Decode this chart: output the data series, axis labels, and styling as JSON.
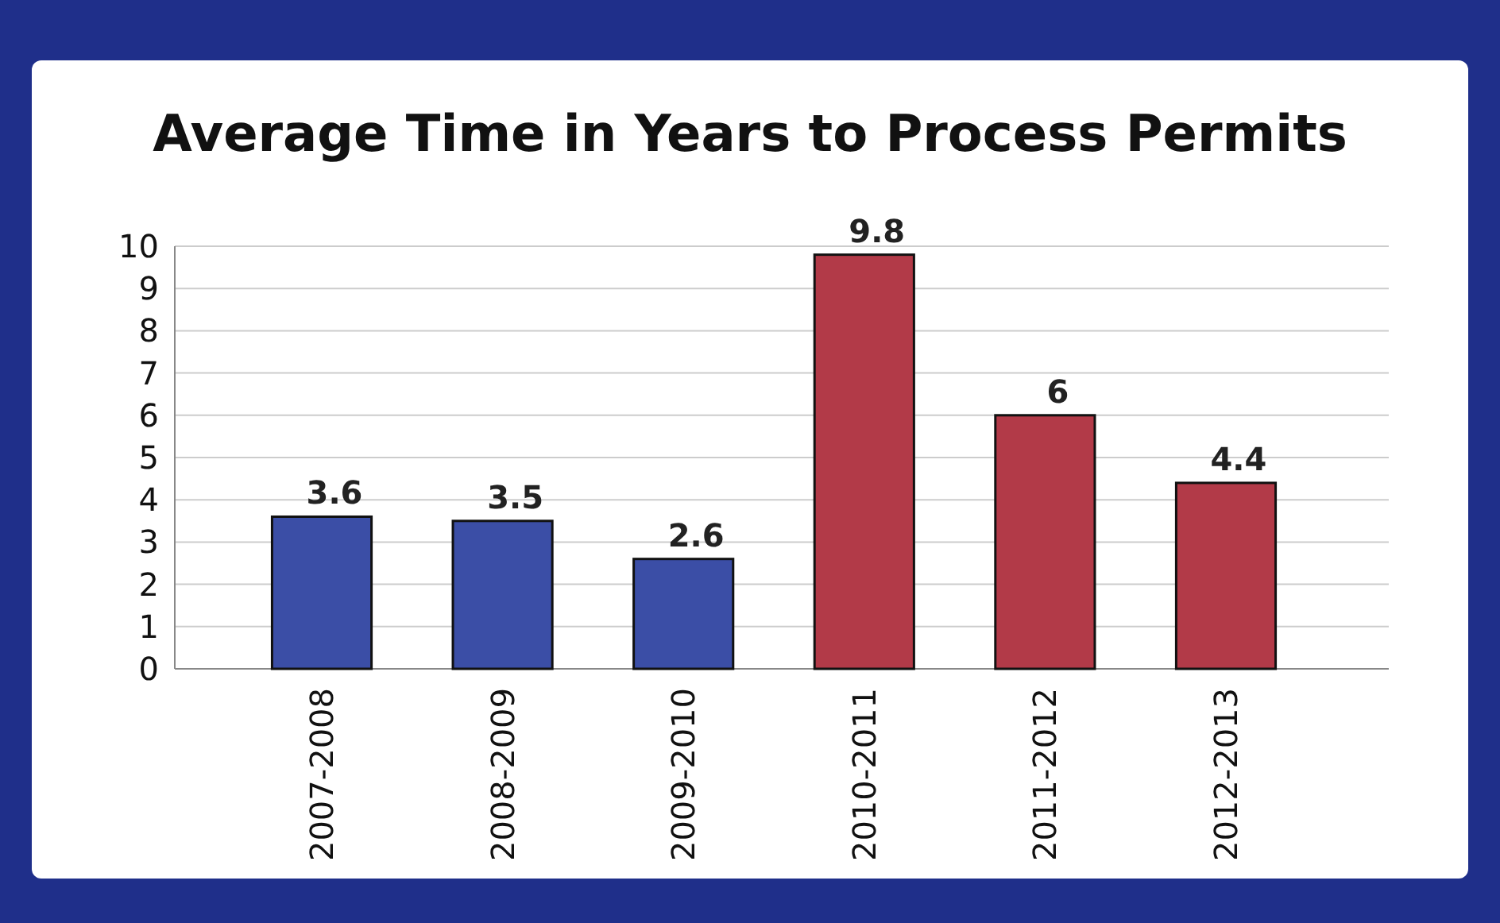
{
  "chart_data": {
    "type": "bar",
    "title": "Average Time in Years to Process Permits",
    "categories": [
      "2007-2008",
      "2008-2009",
      "2009-2010",
      "2010-2011",
      "2011-2012",
      "2012-2013"
    ],
    "values": [
      3.6,
      3.5,
      2.6,
      9.8,
      6,
      4.4
    ],
    "colors": [
      "#3b4ea6",
      "#3b4ea6",
      "#3b4ea6",
      "#b23a48",
      "#b23a48",
      "#b23a48"
    ],
    "ylim": [
      0,
      10
    ],
    "yticks": [
      0,
      1,
      2,
      3,
      4,
      5,
      6,
      7,
      8,
      9,
      10
    ],
    "grid": "y",
    "data_labels": true
  }
}
